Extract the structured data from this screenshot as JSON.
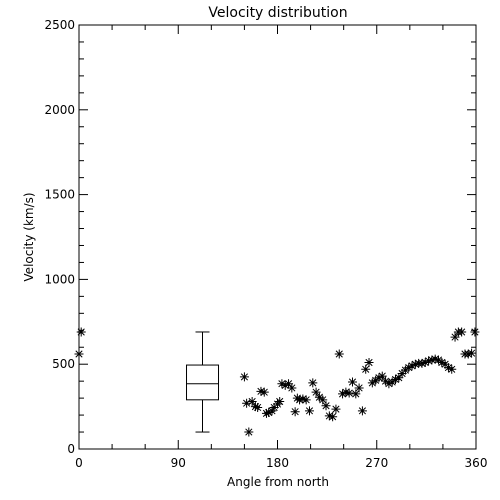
{
  "chart_data": {
    "type": "scatter",
    "title": "Velocity distribution",
    "xlabel": "Angle from north",
    "ylabel": "Velocity (km/s)",
    "xlim": [
      0,
      360
    ],
    "ylim": [
      0,
      2500
    ],
    "xticks": [
      0,
      90,
      180,
      270,
      360
    ],
    "yticks": [
      0,
      500,
      1000,
      1500,
      2000,
      2500
    ],
    "grid": false,
    "legend": "none",
    "marker": "asterisk",
    "color": "#000000",
    "boxplot": {
      "x": 112,
      "whisker_low": 100,
      "q1": 290,
      "median": 385,
      "q3": 495,
      "whisker_high": 690
    },
    "points": [
      [
        0,
        560
      ],
      [
        2,
        690
      ],
      [
        150,
        425
      ],
      [
        152,
        270
      ],
      [
        154,
        100
      ],
      [
        157,
        280
      ],
      [
        160,
        250
      ],
      [
        162,
        245
      ],
      [
        165,
        340
      ],
      [
        168,
        335
      ],
      [
        170,
        210
      ],
      [
        172,
        215
      ],
      [
        175,
        225
      ],
      [
        177,
        245
      ],
      [
        180,
        265
      ],
      [
        182,
        280
      ],
      [
        184,
        385
      ],
      [
        187,
        375
      ],
      [
        190,
        385
      ],
      [
        193,
        360
      ],
      [
        196,
        220
      ],
      [
        198,
        300
      ],
      [
        200,
        290
      ],
      [
        203,
        295
      ],
      [
        206,
        290
      ],
      [
        209,
        225
      ],
      [
        212,
        390
      ],
      [
        215,
        335
      ],
      [
        218,
        305
      ],
      [
        221,
        290
      ],
      [
        224,
        255
      ],
      [
        227,
        195
      ],
      [
        230,
        190
      ],
      [
        233,
        235
      ],
      [
        236,
        560
      ],
      [
        239,
        325
      ],
      [
        242,
        335
      ],
      [
        245,
        330
      ],
      [
        248,
        395
      ],
      [
        251,
        325
      ],
      [
        254,
        360
      ],
      [
        257,
        225
      ],
      [
        260,
        470
      ],
      [
        263,
        510
      ],
      [
        266,
        390
      ],
      [
        269,
        405
      ],
      [
        272,
        420
      ],
      [
        275,
        430
      ],
      [
        278,
        400
      ],
      [
        281,
        385
      ],
      [
        284,
        395
      ],
      [
        287,
        410
      ],
      [
        290,
        420
      ],
      [
        293,
        445
      ],
      [
        296,
        465
      ],
      [
        299,
        480
      ],
      [
        302,
        490
      ],
      [
        305,
        500
      ],
      [
        308,
        505
      ],
      [
        311,
        505
      ],
      [
        314,
        510
      ],
      [
        317,
        520
      ],
      [
        320,
        525
      ],
      [
        323,
        530
      ],
      [
        326,
        525
      ],
      [
        329,
        510
      ],
      [
        332,
        500
      ],
      [
        335,
        480
      ],
      [
        338,
        470
      ],
      [
        341,
        660
      ],
      [
        344,
        690
      ],
      [
        347,
        690
      ],
      [
        350,
        560
      ],
      [
        353,
        560
      ],
      [
        356,
        565
      ],
      [
        359,
        690
      ]
    ]
  }
}
